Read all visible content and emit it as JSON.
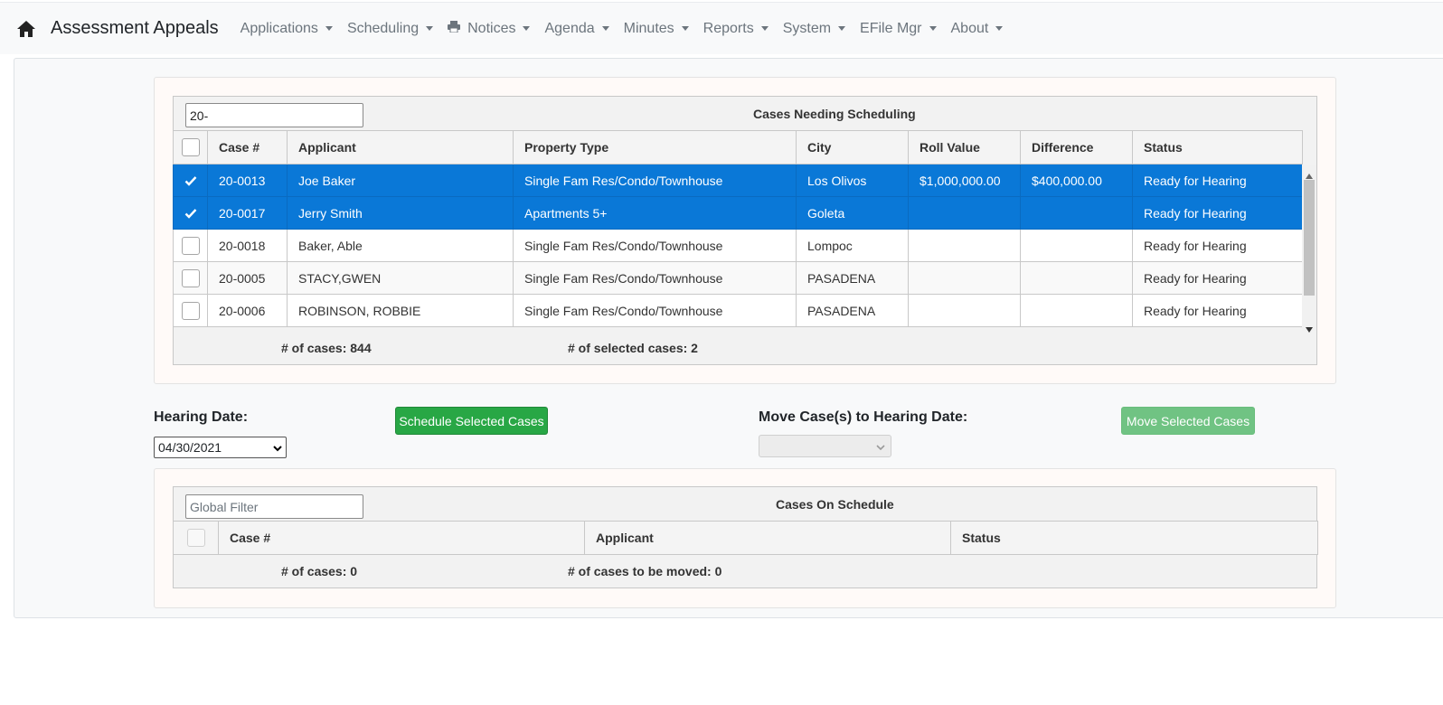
{
  "navbar": {
    "home_icon": "home-icon",
    "brand": "Assessment Appeals",
    "menu": [
      {
        "label": "Applications"
      },
      {
        "label": "Scheduling"
      },
      {
        "label": "Notices",
        "icon": "printer-icon"
      },
      {
        "label": "Agenda"
      },
      {
        "label": "Minutes"
      },
      {
        "label": "Reports"
      },
      {
        "label": "System"
      },
      {
        "label": "EFile Mgr"
      },
      {
        "label": "About"
      }
    ]
  },
  "needing": {
    "filter_value": "20-",
    "title": "Cases Needing Scheduling",
    "columns": [
      "Case #",
      "Applicant",
      "Property Type",
      "City",
      "Roll Value",
      "Difference",
      "Status"
    ],
    "rows": [
      {
        "selected": true,
        "case": "20-0013",
        "applicant": "Joe Baker",
        "property_type": "Single Fam Res/Condo/Townhouse",
        "city": "Los Olivos",
        "roll_value": "$1,000,000.00",
        "difference": "$400,000.00",
        "status": "Ready for Hearing"
      },
      {
        "selected": true,
        "case": "20-0017",
        "applicant": "Jerry Smith",
        "property_type": "Apartments 5+",
        "city": "Goleta",
        "roll_value": "",
        "difference": "",
        "status": "Ready for Hearing"
      },
      {
        "selected": false,
        "case": "20-0018",
        "applicant": "Baker, Able",
        "property_type": "Single Fam Res/Condo/Townhouse",
        "city": "Lompoc",
        "roll_value": "",
        "difference": "",
        "status": "Ready for Hearing"
      },
      {
        "selected": false,
        "case": "20-0005",
        "applicant": "STACY,GWEN",
        "property_type": "Single Fam Res/Condo/Townhouse",
        "city": "PASADENA",
        "roll_value": "",
        "difference": "",
        "status": "Ready for Hearing"
      },
      {
        "selected": false,
        "case": "20-0006",
        "applicant": "ROBINSON, ROBBIE",
        "property_type": "Single Fam Res/Condo/Townhouse",
        "city": "PASADENA",
        "roll_value": "",
        "difference": "",
        "status": "Ready for Hearing"
      }
    ],
    "count_label": "# of cases: 844",
    "selected_label": "# of selected cases: 2"
  },
  "controls": {
    "hearing_date_label": "Hearing Date:",
    "hearing_date_value": "04/30/2021",
    "schedule_button": "Schedule Selected Cases",
    "move_label": "Move Case(s) to Hearing Date:",
    "move_value": "",
    "move_button": "Move Selected Cases"
  },
  "on_schedule": {
    "filter_placeholder": "Global Filter",
    "title": "Cases On Schedule",
    "columns": [
      "Case #",
      "Applicant",
      "Status"
    ],
    "count_label": "# of cases: 0",
    "moved_label": "# of cases to be moved: 0"
  },
  "colors": {
    "selected_row": "#0a78d7",
    "success": "#28a745",
    "success_disabled": "#70c383"
  }
}
